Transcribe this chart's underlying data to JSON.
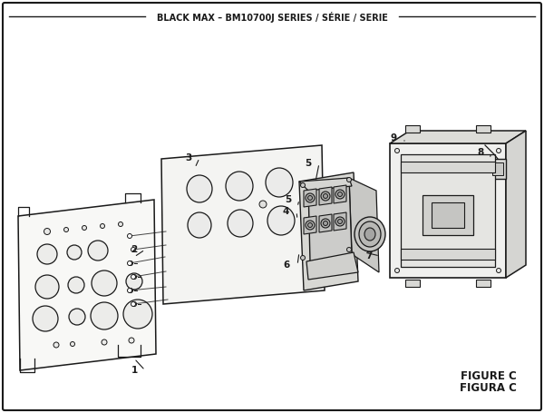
{
  "title": "BLACK MAX – BM10700J SERIES / SÉRIE / SERIE",
  "figure_label": "FIGURE C",
  "figura_label": "FIGURA C",
  "bg_color": "#ffffff",
  "border_color": "#1a1a1a",
  "line_color": "#1a1a1a",
  "fill_light": "#f0f0ee",
  "fill_mid": "#e0e0dc",
  "fill_dark": "#c8c8c4"
}
